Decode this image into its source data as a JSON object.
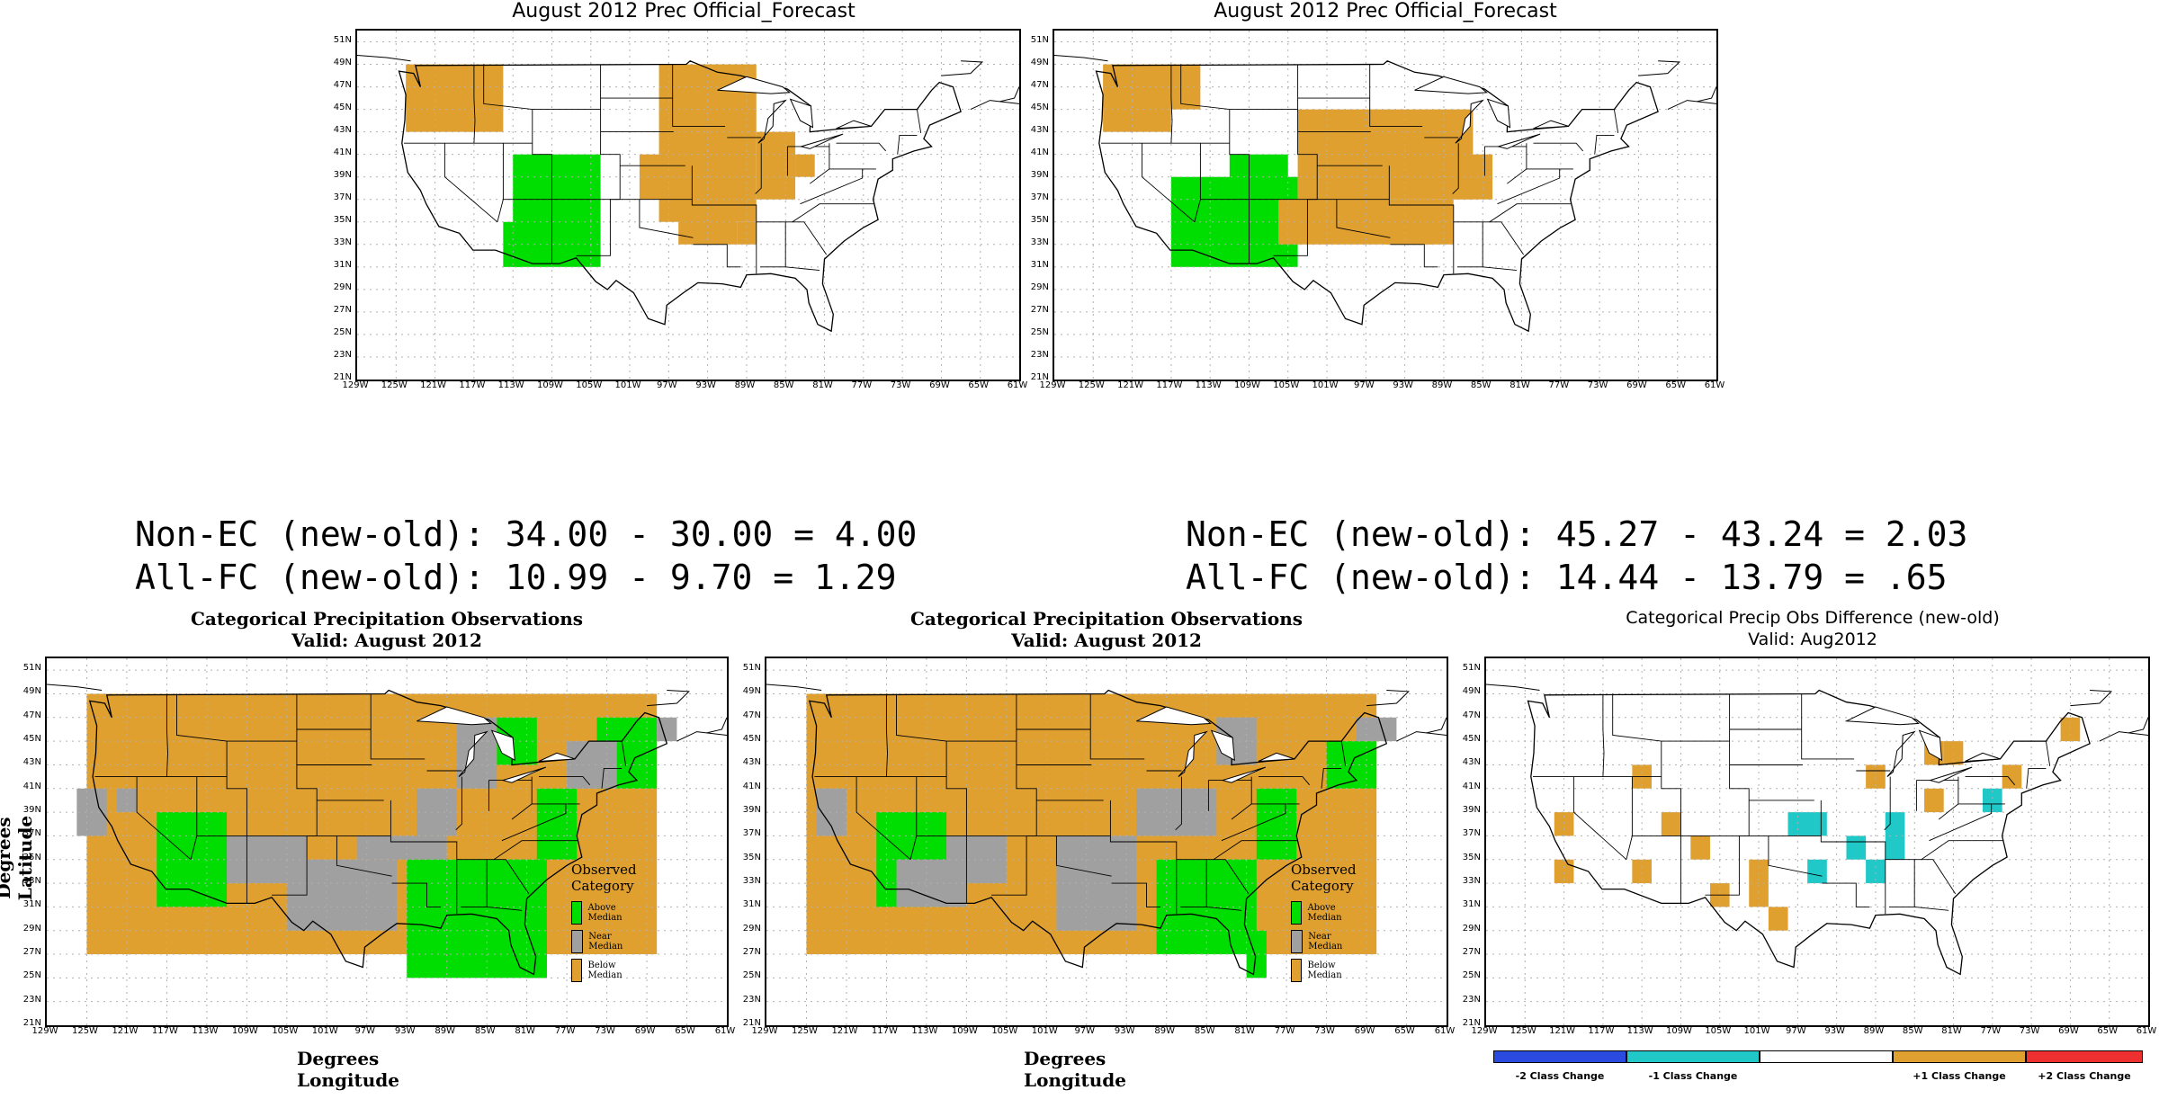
{
  "top_left": {
    "title": "August 2012 Prec Official_Forecast"
  },
  "top_right": {
    "title": "August 2012 Prec Official_Forecast"
  },
  "lat_labels": [
    "51N",
    "49N",
    "47N",
    "45N",
    "43N",
    "41N",
    "39N",
    "37N",
    "35N",
    "33N",
    "31N",
    "29N",
    "27N",
    "25N",
    "23N",
    "21N"
  ],
  "lon_labels": [
    "129W",
    "125W",
    "121W",
    "117W",
    "113W",
    "109W",
    "105W",
    "101W",
    "97W",
    "93W",
    "89W",
    "85W",
    "81W",
    "77W",
    "73W",
    "69W",
    "65W",
    "61W"
  ],
  "stats_left": {
    "line1": "Non-EC (new-old): 34.00 - 30.00 = 4.00",
    "line2": "All-FC (new-old): 10.99 - 9.70 = 1.29"
  },
  "stats_right": {
    "line1": "Non-EC (new-old): 45.27 - 43.24 = 2.03",
    "line2": "All-FC (new-old): 14.44 - 13.79 = .65"
  },
  "bottom_left": {
    "title": "Categorical Precipitation Observations",
    "subtitle": "Valid: August 2012",
    "ylabel": "Degrees Latitude",
    "xlabel": "Degrees Longitude"
  },
  "bottom_middle": {
    "title": "Categorical Precipitation Observations",
    "subtitle": "Valid: August 2012",
    "xlabel": "Degrees Longitude"
  },
  "bottom_right": {
    "title": "Categorical Precip Obs Difference (new-old)",
    "subtitle": "Valid: Aug2012"
  },
  "legend": {
    "title": "Observed Category",
    "items": [
      {
        "label": "Above Median",
        "color": "#00dd00"
      },
      {
        "label": "Near Median",
        "color": "#a0a0a0"
      },
      {
        "label": "Below Median",
        "color": "#e0a030"
      }
    ]
  },
  "colorbar": {
    "items": [
      {
        "label": "-2 Class Change",
        "color": "#2b4be0"
      },
      {
        "label": "-1 Class Change",
        "color": "#20c8c8"
      },
      {
        "label": "",
        "color": "#ffffff"
      },
      {
        "label": "+1 Class Change",
        "color": "#e0a030"
      },
      {
        "label": "+2 Class Change",
        "color": "#ee3030"
      }
    ]
  },
  "colors": {
    "green": "#00dd00",
    "gray": "#a0a0a0",
    "orange": "#e0a030",
    "cyan": "#20c8c8",
    "grid": "#b0b0b0"
  }
}
